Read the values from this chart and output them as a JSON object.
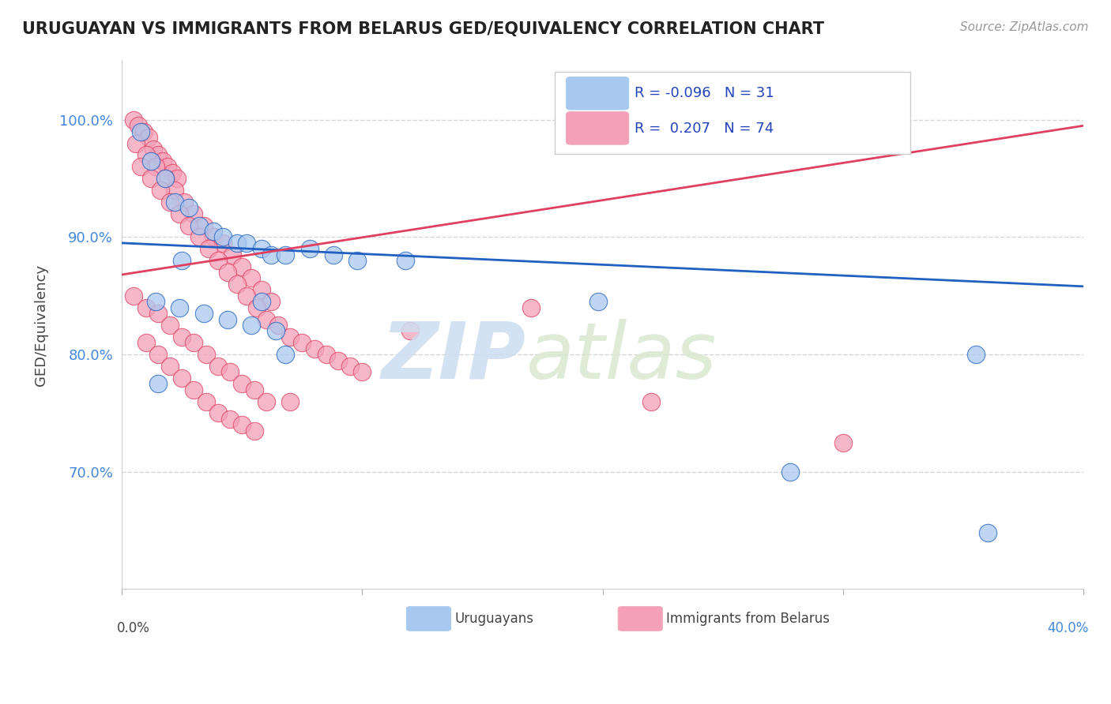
{
  "title": "URUGUAYAN VS IMMIGRANTS FROM BELARUS GED/EQUIVALENCY CORRELATION CHART",
  "source": "Source: ZipAtlas.com",
  "ylabel": "GED/Equivalency",
  "ytick_labels": [
    "100.0%",
    "90.0%",
    "80.0%",
    "70.0%"
  ],
  "ytick_values": [
    1.0,
    0.9,
    0.8,
    0.7
  ],
  "xlim": [
    0.0,
    0.4
  ],
  "ylim": [
    0.6,
    1.05
  ],
  "legend_r_blue": "-0.096",
  "legend_n_blue": "31",
  "legend_r_pink": "0.207",
  "legend_n_pink": "74",
  "legend_label_blue": "Uruguayans",
  "legend_label_pink": "Immigrants from Belarus",
  "blue_color": "#a8c8f0",
  "pink_color": "#f4a0b8",
  "blue_line_color": "#2060c0",
  "pink_line_color": "#e04060",
  "blue_scatter_x": [
    0.008,
    0.012,
    0.018,
    0.022,
    0.028,
    0.032,
    0.038,
    0.042,
    0.048,
    0.052,
    0.058,
    0.062,
    0.068,
    0.078,
    0.088,
    0.098,
    0.118,
    0.014,
    0.024,
    0.034,
    0.044,
    0.054,
    0.064,
    0.198,
    0.278,
    0.058,
    0.068,
    0.025,
    0.015,
    0.355,
    0.36
  ],
  "blue_scatter_y": [
    0.99,
    0.965,
    0.95,
    0.93,
    0.925,
    0.91,
    0.905,
    0.9,
    0.895,
    0.895,
    0.89,
    0.885,
    0.885,
    0.89,
    0.885,
    0.88,
    0.88,
    0.845,
    0.84,
    0.835,
    0.83,
    0.825,
    0.82,
    0.845,
    0.7,
    0.845,
    0.8,
    0.88,
    0.775,
    0.8,
    0.648
  ],
  "pink_scatter_x": [
    0.005,
    0.007,
    0.009,
    0.011,
    0.013,
    0.015,
    0.017,
    0.019,
    0.021,
    0.023,
    0.006,
    0.01,
    0.014,
    0.018,
    0.022,
    0.026,
    0.03,
    0.034,
    0.038,
    0.042,
    0.046,
    0.05,
    0.054,
    0.058,
    0.062,
    0.008,
    0.012,
    0.016,
    0.02,
    0.024,
    0.028,
    0.032,
    0.036,
    0.04,
    0.044,
    0.048,
    0.052,
    0.056,
    0.06,
    0.065,
    0.07,
    0.075,
    0.08,
    0.085,
    0.09,
    0.095,
    0.1,
    0.005,
    0.01,
    0.015,
    0.02,
    0.025,
    0.03,
    0.035,
    0.04,
    0.045,
    0.05,
    0.055,
    0.01,
    0.015,
    0.02,
    0.025,
    0.03,
    0.035,
    0.04,
    0.045,
    0.05,
    0.055,
    0.12,
    0.17,
    0.22,
    0.06,
    0.07,
    0.3
  ],
  "pink_scatter_y": [
    1.0,
    0.995,
    0.99,
    0.985,
    0.975,
    0.97,
    0.965,
    0.96,
    0.955,
    0.95,
    0.98,
    0.97,
    0.96,
    0.95,
    0.94,
    0.93,
    0.92,
    0.91,
    0.9,
    0.895,
    0.885,
    0.875,
    0.865,
    0.855,
    0.845,
    0.96,
    0.95,
    0.94,
    0.93,
    0.92,
    0.91,
    0.9,
    0.89,
    0.88,
    0.87,
    0.86,
    0.85,
    0.84,
    0.83,
    0.825,
    0.815,
    0.81,
    0.805,
    0.8,
    0.795,
    0.79,
    0.785,
    0.85,
    0.84,
    0.835,
    0.825,
    0.815,
    0.81,
    0.8,
    0.79,
    0.785,
    0.775,
    0.77,
    0.81,
    0.8,
    0.79,
    0.78,
    0.77,
    0.76,
    0.75,
    0.745,
    0.74,
    0.735,
    0.82,
    0.84,
    0.76,
    0.76,
    0.76,
    0.725
  ],
  "blue_trend_x": [
    0.0,
    0.4
  ],
  "blue_trend_y": [
    0.895,
    0.858
  ],
  "pink_trend_x": [
    0.0,
    0.4
  ],
  "pink_trend_y": [
    0.868,
    0.995
  ]
}
